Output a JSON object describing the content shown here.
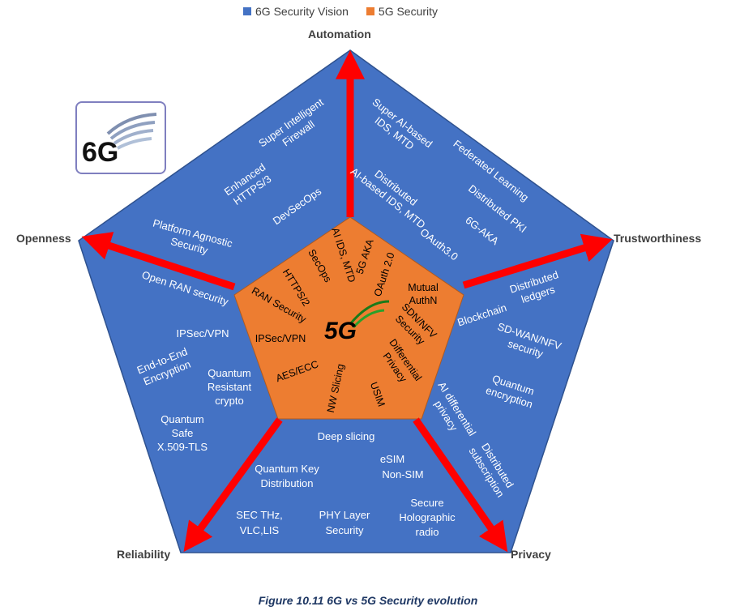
{
  "legend": {
    "vision": {
      "label": "6G Security Vision",
      "color": "#4472c4"
    },
    "current": {
      "label": "5G Security",
      "color": "#ed7d31"
    }
  },
  "axes": {
    "automation": "Automation",
    "trustworthiness": "Trustworthiness",
    "privacy": "Privacy",
    "reliability": "Reliability",
    "openness": "Openness"
  },
  "logo_6g": "6G",
  "logo_5g": "5G",
  "outer_labels": {
    "super_intelligent_firewall": "Super Intelligent Firewall",
    "enhanced_https3": "Enhanced HTTPS/3",
    "devsecops": "DevSecOps",
    "platform_agnostic": "Platform Agnostic Security",
    "super_ai_ids": "Super AI-based IDS, MTD",
    "distributed_ai_ids": "Distributed AI-based IDS, MTD",
    "federated_learning": "Federated Learning",
    "distributed_pki": "Distributed PKI",
    "6g_aka": "6G-AKA",
    "oauth3": "OAuth3.0",
    "distributed_ledgers": "Distributed ledgers",
    "blockchain": "Blockchain",
    "sdwan_nfv": "SD-WAN/NFV security",
    "quantum_encryption": "Quantum encryption",
    "ai_differential_privacy": "AI differential privacy",
    "distributed_subscription": "Distributed subscription",
    "deep_slicing": "Deep slicing",
    "esim": "eSIM",
    "non_sim": "Non-SIM",
    "quantum_key": "Quantum Key Distribution",
    "sec_thz": "SEC THz, VLC,LIS",
    "phy_layer": "PHY Layer Security",
    "secure_holographic": "Secure Holographic radio",
    "open_ran": "Open RAN security",
    "ipsec_vpn": "IPSec/VPN",
    "e2e_encryption": "End-to-End Encryption",
    "quantum_resistant": "Quantum Resistant crypto",
    "quantum_safe": "Quantum Safe X.509-TLS"
  },
  "inner_labels": {
    "ai_ids": "AI IDS, MTD",
    "secops": "SecOps",
    "5g_aka": "5G AKA",
    "oauth2": "OAuth 2.0",
    "https2": "HTTPS/2",
    "mutual_authn": "Mutual AuthN",
    "ran_security": "RAN Security",
    "sdn_nfv": "SDN/NFV Security",
    "ipsec_vpn": "IPSec/VPN",
    "differential_privacy": "Differential Privacy",
    "aes_ecc": "AES/ECC",
    "nw_slicing": "NW Slicing",
    "usim": "USIM"
  },
  "caption": "Figure 10.11 6G vs 5G Security evolution"
}
